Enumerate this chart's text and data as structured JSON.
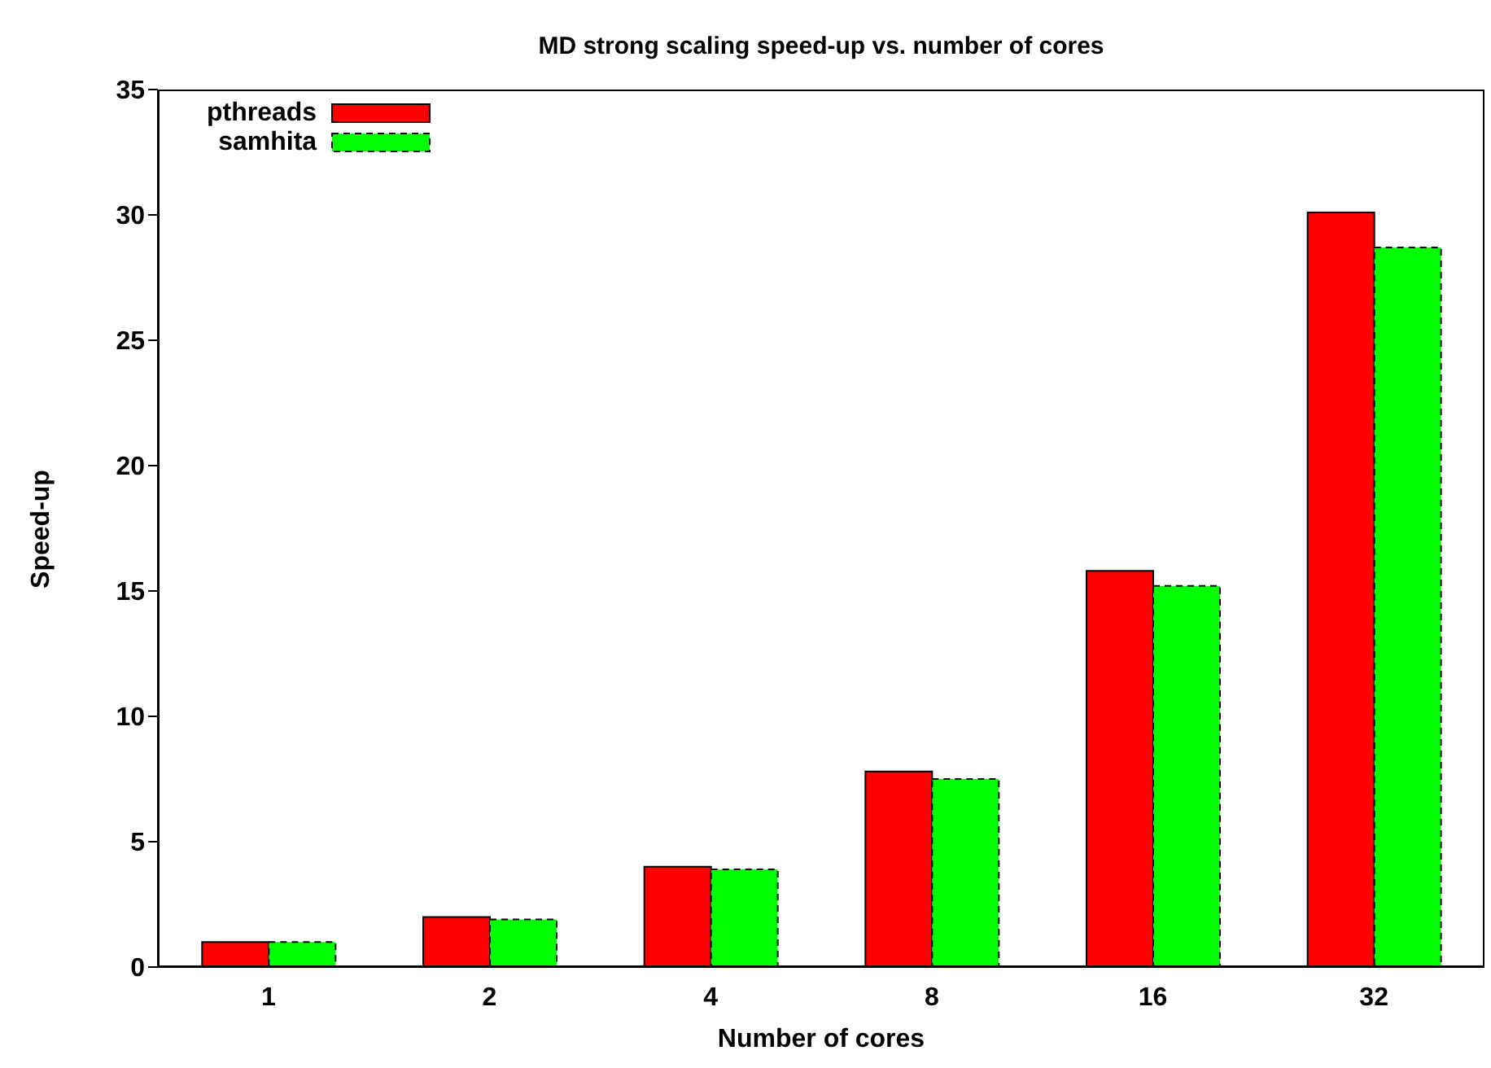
{
  "chart_data": {
    "type": "bar",
    "title": "MD strong scaling speed-up vs. number of cores",
    "xlabel": "Number of cores",
    "ylabel": "Speed-up",
    "categories": [
      "1",
      "2",
      "4",
      "8",
      "16",
      "32"
    ],
    "series": [
      {
        "name": "pthreads",
        "color": "#ff0000",
        "values": [
          1,
          2,
          4,
          7.8,
          15.8,
          30.1
        ]
      },
      {
        "name": "samhita",
        "color": "#00ff00",
        "values": [
          1,
          1.9,
          3.9,
          7.5,
          15.2,
          28.7
        ],
        "line_style": "dashed"
      }
    ],
    "ylim": [
      0,
      35
    ],
    "yticks": [
      0,
      5,
      10,
      15,
      20,
      25,
      30,
      35
    ],
    "legend": "top left"
  }
}
